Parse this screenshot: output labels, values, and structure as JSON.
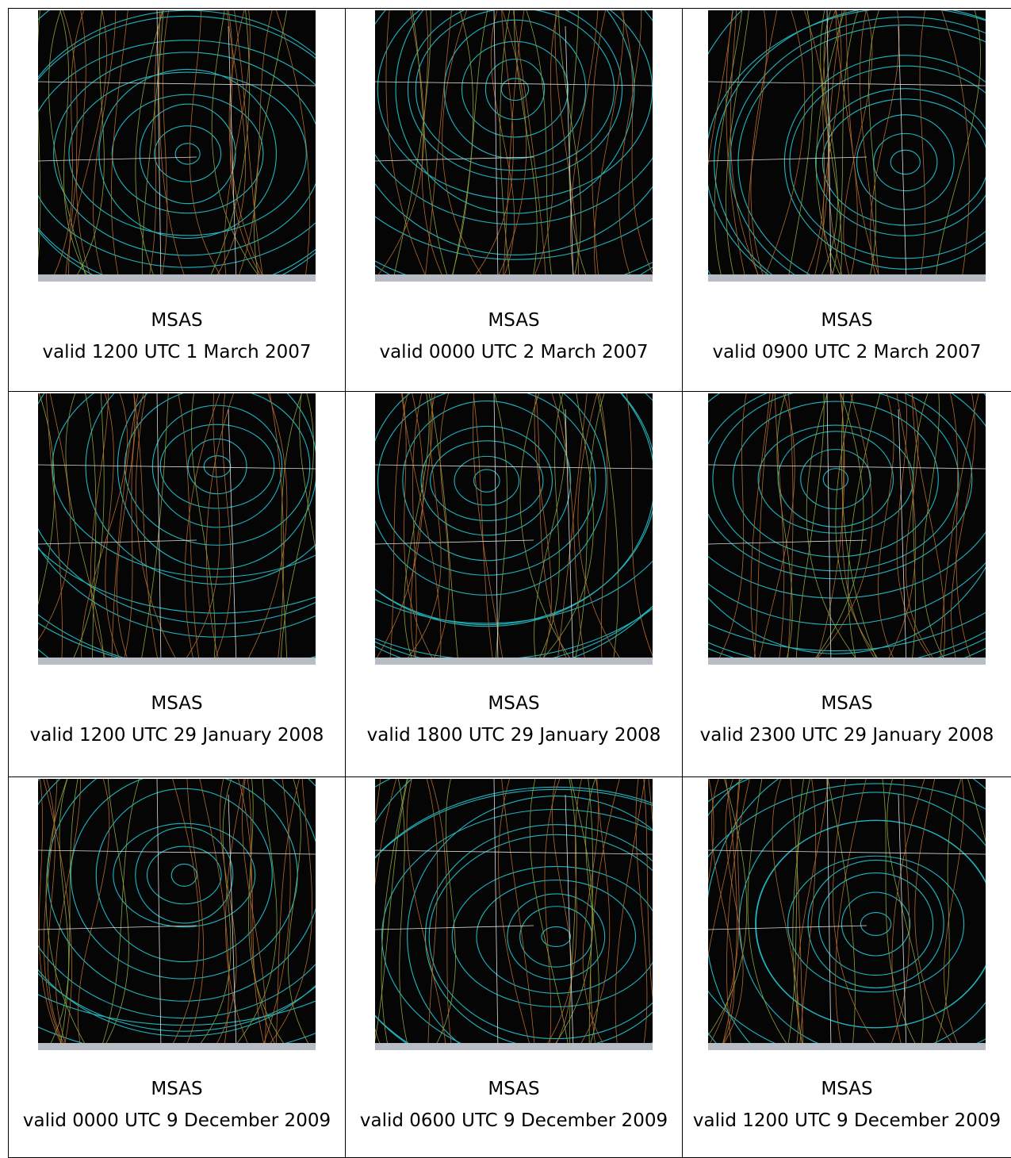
{
  "table": {
    "rows": [
      [
        {
          "title": "MSAS",
          "caption": "valid 1200 UTC 1 March 2007"
        },
        {
          "title": "MSAS",
          "caption": "valid 0000 UTC 2 March 2007"
        },
        {
          "title": "MSAS",
          "caption": "valid 0900 UTC 2 March 2007"
        }
      ],
      [
        {
          "title": "MSAS",
          "caption": "valid 1200 UTC 29 January 2008"
        },
        {
          "title": "MSAS",
          "caption": "valid 1800 UTC 29 January 2008"
        },
        {
          "title": "MSAS",
          "caption": "valid 2300 UTC 29 January 2008"
        }
      ],
      [
        {
          "title": "MSAS",
          "caption": "valid 0000 UTC 9 December 2009"
        },
        {
          "title": "MSAS",
          "caption": "valid 0600 UTC 9 December 2009"
        },
        {
          "title": "MSAS",
          "caption": "valid 1200 UTC 9 December 2009"
        }
      ]
    ]
  }
}
